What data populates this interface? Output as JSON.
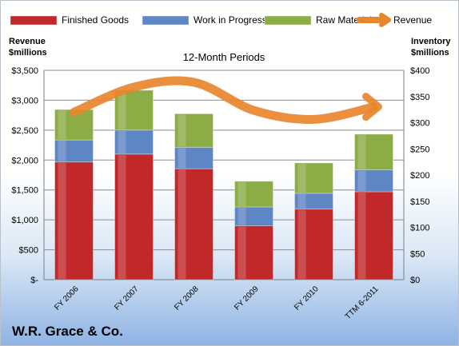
{
  "chart_data": {
    "type": "bar",
    "stacked": true,
    "title": "12-Month Periods",
    "categories": [
      "FY 2006",
      "FY 2007",
      "FY 2008",
      "FY 2009",
      "FY 2010",
      "TTM 6-2011"
    ],
    "series": [
      {
        "name": "Finished Goods",
        "axis": "right",
        "color": "#c0282a",
        "values": [
          225,
          240,
          212,
          103,
          135,
          168
        ]
      },
      {
        "name": "Work in Progress",
        "axis": "right",
        "color": "#5f86c4",
        "values": [
          42,
          46,
          41,
          36,
          30,
          42
        ]
      },
      {
        "name": "Raw Materials",
        "axis": "right",
        "color": "#8cac46",
        "values": [
          58,
          76,
          64,
          49,
          58,
          68
        ]
      },
      {
        "name": "Revenue",
        "axis": "left",
        "type": "line",
        "color": "#e8862c",
        "values": [
          2800,
          3220,
          3300,
          2830,
          2680,
          2890
        ]
      }
    ],
    "ylabel": "Revenue\n$millions",
    "ylabel_right": "Inventory\n$millions",
    "ylim": [
      0,
      3500
    ],
    "ylim_right": [
      0,
      400
    ],
    "yticks": [
      "$-",
      "$500",
      "$1,000",
      "$1,500",
      "$2,000",
      "$2,500",
      "$3,000",
      "$3,500"
    ],
    "yticks_right": [
      "$0",
      "$50",
      "$100",
      "$150",
      "$200",
      "$250",
      "$300",
      "$350",
      "$400"
    ],
    "grid": true,
    "legend": "top"
  },
  "company": "W.R. Grace & Co."
}
